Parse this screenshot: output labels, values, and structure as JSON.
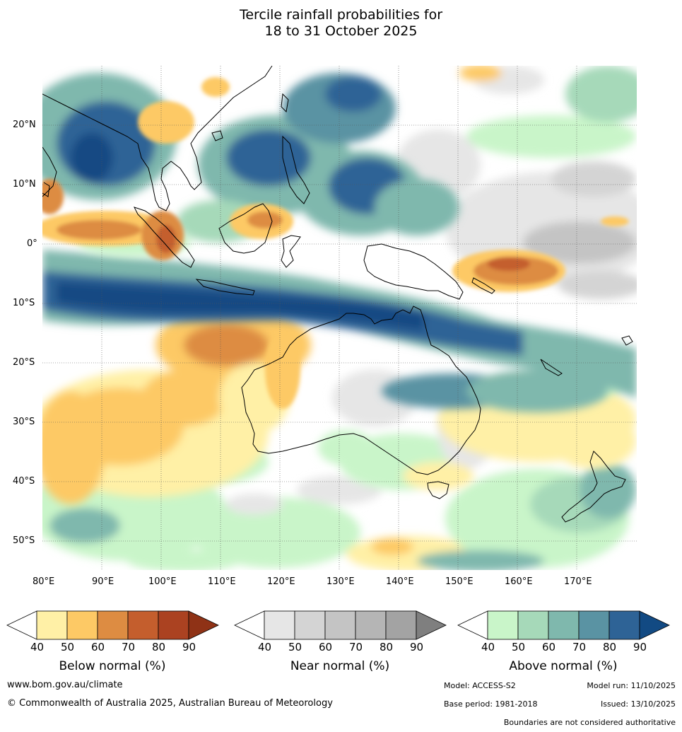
{
  "title_line1": "Tercile rainfall probabilities for",
  "title_line2": "18 to 31 October 2025",
  "lat_labels": [
    "20°N",
    "10°N",
    "0°",
    "10°S",
    "20°S",
    "30°S",
    "40°S",
    "50°S"
  ],
  "lon_labels": [
    "80°E",
    "90°E",
    "100°E",
    "110°E",
    "120°E",
    "130°E",
    "140°E",
    "150°E",
    "160°E",
    "170°E"
  ],
  "colorbars": [
    {
      "label": "Below normal (%)",
      "colors": [
        "#fff0a6",
        "#fdc965",
        "#dd8c42",
        "#c45e2d",
        "#ab4221",
        "#8f3216"
      ]
    },
    {
      "label": "Near normal (%)",
      "colors": [
        "#e6e6e6",
        "#d4d4d4",
        "#c4c4c4",
        "#b5b5b5",
        "#a3a3a3",
        "#7f7f7f"
      ]
    },
    {
      "label": "Above normal (%)",
      "colors": [
        "#c9f5c9",
        "#a6d9b9",
        "#7fb8ad",
        "#5a93a3",
        "#2e6396",
        "#124a83"
      ]
    }
  ],
  "ticks": [
    "40",
    "50",
    "60",
    "70",
    "80",
    "90"
  ],
  "footer": {
    "url": "www.bom.gov.au/climate",
    "copyright": "© Commonwealth of Australia 2025, Australian Bureau of Meteorology",
    "model": "Model: ACCESS-S2",
    "model_run": "Model run: 11/10/2025",
    "base_period": "Base period: 1981-2018",
    "issued": "Issued: 13/10/2025",
    "boundaries": "Boundaries are not considered authoritative"
  },
  "colors": {
    "land_outline": "#000000",
    "grid": "#555555"
  }
}
